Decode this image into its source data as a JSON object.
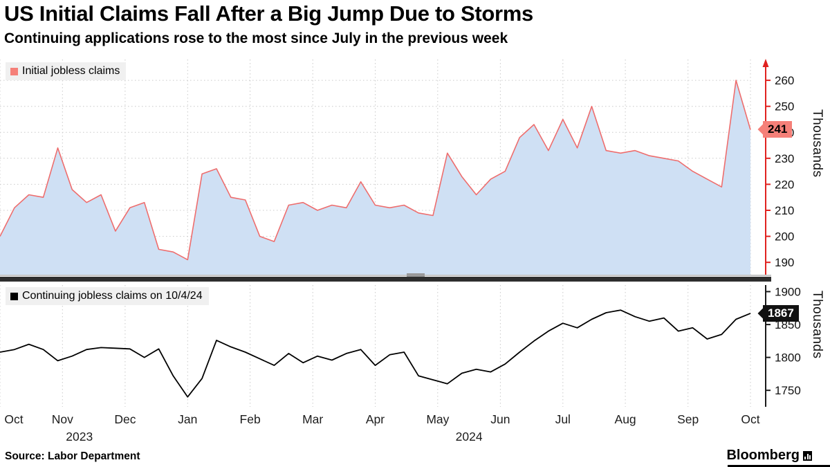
{
  "header": {
    "title": "US Initial Claims Fall After a Big Jump Due to Storms",
    "subtitle": "Continuing applications rose to the most since July in the previous week"
  },
  "source": "Source: Labor Department",
  "brand": "Bloomberg",
  "colors": {
    "line_top": "#ee6d6d",
    "fill_top": "#cfe0f4",
    "axis_top": "#e0211f",
    "badge_top_bg": "#f58079",
    "line_bottom": "#000000",
    "axis_bottom": "#1a1a1a",
    "badge_bottom_bg": "#111111",
    "grid": "#c9c9c9"
  },
  "x_axis": {
    "months": [
      "Oct",
      "Nov",
      "Dec",
      "Jan",
      "Feb",
      "Mar",
      "Apr",
      "May",
      "Jun",
      "Jul",
      "Aug",
      "Sep",
      "Oct"
    ],
    "month_index": [
      0,
      4.33,
      8.67,
      13,
      17.33,
      21.67,
      26,
      30.33,
      34.67,
      39,
      43.33,
      47.67,
      52
    ],
    "years": [
      {
        "label": "2023",
        "at_index": 5.5
      },
      {
        "label": "2024",
        "at_index": 32.5
      }
    ]
  },
  "chart_data": [
    {
      "type": "area",
      "legend": "Initial jobless claims",
      "unit": "Thousands",
      "ylim": [
        185,
        268
      ],
      "yticks": [
        190,
        200,
        210,
        220,
        230,
        240,
        250,
        260
      ],
      "last_value": 241,
      "values": [
        200,
        211,
        216,
        215,
        234,
        218,
        213,
        216,
        202,
        211,
        213,
        195,
        194,
        191,
        224,
        226,
        215,
        214,
        200,
        198,
        212,
        213,
        210,
        212,
        211,
        221,
        212,
        211,
        212,
        209,
        208,
        232,
        223,
        216,
        222,
        225,
        238,
        243,
        233,
        245,
        234,
        250,
        233,
        232,
        233,
        231,
        230,
        229,
        225,
        222,
        219,
        260,
        241
      ]
    },
    {
      "type": "line",
      "legend": "Continuing jobless claims on 10/4/24",
      "unit": "Thousands",
      "ylim": [
        1725,
        1910
      ],
      "yticks": [
        1750,
        1800,
        1850,
        1900
      ],
      "last_value": 1867,
      "values": [
        1808,
        1812,
        1820,
        1812,
        1795,
        1802,
        1812,
        1815,
        1814,
        1813,
        1800,
        1813,
        1772,
        1740,
        1768,
        1826,
        1816,
        1808,
        1798,
        1788,
        1806,
        1792,
        1802,
        1796,
        1806,
        1812,
        1788,
        1804,
        1808,
        1772,
        1766,
        1760,
        1776,
        1782,
        1778,
        1790,
        1808,
        1825,
        1840,
        1852,
        1845,
        1858,
        1868,
        1872,
        1862,
        1855,
        1860,
        1840,
        1845,
        1828,
        1835,
        1858,
        1867
      ]
    }
  ]
}
